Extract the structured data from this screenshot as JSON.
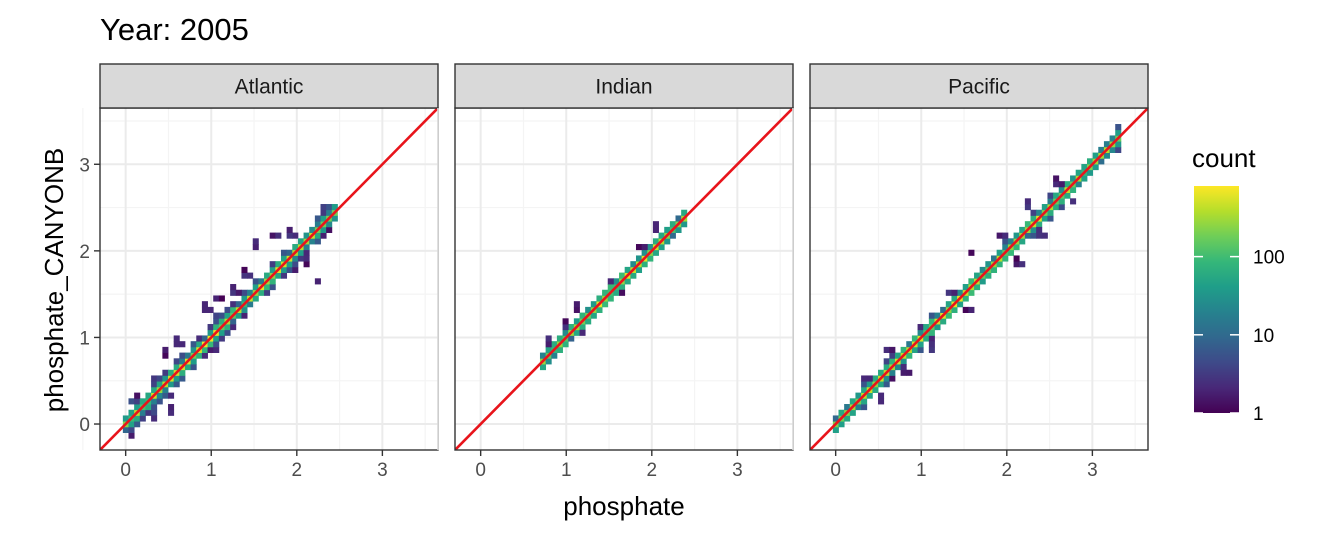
{
  "chart_data": {
    "type": "heatmap",
    "title": "Year: 2005",
    "xlabel": "phosphate",
    "ylabel": "phosphate_CANYONB",
    "xlim": [
      -0.3,
      3.65
    ],
    "ylim": [
      -0.3,
      3.65
    ],
    "x_ticks": [
      0,
      1,
      2,
      3
    ],
    "y_ticks": [
      0,
      1,
      2,
      3
    ],
    "x_tick_labels": [
      "0",
      "1",
      "2",
      "3"
    ],
    "y_tick_labels": [
      "0",
      "1",
      "2",
      "3"
    ],
    "grid": true,
    "bin_width": 0.066,
    "identity_line": {
      "slope": 1,
      "intercept": 0,
      "color": "#e8141b"
    },
    "legend": {
      "title": "count",
      "scale": "log10",
      "range": [
        1,
        800
      ],
      "breaks": [
        1,
        10,
        100
      ],
      "labels": [
        "1",
        "10",
        "100"
      ],
      "placement": "right"
    },
    "colors": {
      "viridis": [
        "#440154",
        "#482878",
        "#3e4a89",
        "#31688e",
        "#26828e",
        "#1f9e89",
        "#35b779",
        "#6ece58",
        "#b5de2b",
        "#fde725"
      ],
      "panel_bg": "#ffffff",
      "grid_major": "#ebebeb",
      "grid_minor": "#f4f4f4",
      "strip_bg": "#d9d9d9",
      "border": "#333333"
    },
    "panels": [
      {
        "name": "Atlantic",
        "x_range": [
          0,
          2.45
        ],
        "core_width": 0.06,
        "spread": 0.13,
        "tails": [
          [
            0.15,
            0.3
          ],
          [
            0.45,
            0.8
          ],
          [
            0.6,
            0.9
          ],
          [
            1.0,
            1.05
          ],
          [
            1.25,
            1.5
          ],
          [
            1.4,
            1.7
          ],
          [
            1.55,
            2.05
          ],
          [
            1.7,
            2.15
          ],
          [
            1.9,
            2.2
          ],
          [
            2.25,
            1.65
          ],
          [
            0.35,
            0.05
          ],
          [
            0.55,
            0.15
          ],
          [
            0.9,
            1.3
          ],
          [
            1.05,
            1.45
          ],
          [
            0.45,
            0.35
          ],
          [
            2.1,
            1.85
          ]
        ]
      },
      {
        "name": "Indian",
        "x_range": [
          0.7,
          2.4
        ],
        "core_width": 0.05,
        "spread": 0.07,
        "tails": [
          [
            1.0,
            1.15
          ],
          [
            1.1,
            1.3
          ],
          [
            0.8,
            0.95
          ],
          [
            1.5,
            1.6
          ],
          [
            1.85,
            2.05
          ],
          [
            2.05,
            2.25
          ],
          [
            1.6,
            1.55
          ],
          [
            1.2,
            1.05
          ]
        ]
      },
      {
        "name": "Pacific",
        "x_range": [
          0,
          3.3
        ],
        "core_width": 0.05,
        "spread": 0.08,
        "tails": [
          [
            0.6,
            0.85
          ],
          [
            0.8,
            0.6
          ],
          [
            1.3,
            1.55
          ],
          [
            1.5,
            1.3
          ],
          [
            1.9,
            2.15
          ],
          [
            2.1,
            1.85
          ],
          [
            2.6,
            2.8
          ],
          [
            2.8,
            2.6
          ],
          [
            0.5,
            0.25
          ],
          [
            1.6,
            1.95
          ],
          [
            2.4,
            2.15
          ],
          [
            0.35,
            0.55
          ],
          [
            1.1,
            0.85
          ],
          [
            2.25,
            2.5
          ]
        ]
      }
    ]
  }
}
